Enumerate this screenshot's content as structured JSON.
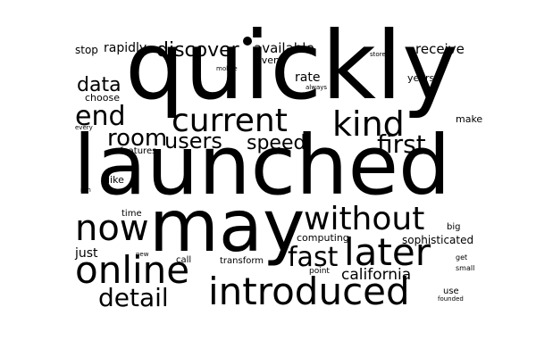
{
  "text_color": "#000000",
  "background_color": "#ffffff",
  "words": [
    "quickly",
    "launched",
    "may",
    "introduced",
    "online",
    "without",
    "later",
    "current",
    "kind",
    "now",
    "fast",
    "first",
    "end",
    "room",
    "users",
    "speed",
    "discover",
    "detail",
    "data",
    "available",
    "california",
    "rapidly",
    "receive",
    "rate",
    "sophisticated",
    "just",
    "stop",
    "choose",
    "features",
    "even",
    "years",
    "make",
    "like",
    "time",
    "computing",
    "big",
    "call",
    "transform",
    "point",
    "use",
    "get",
    "small",
    "founded",
    "new",
    "every",
    "mobile",
    "stores",
    "always",
    "run"
  ]
}
